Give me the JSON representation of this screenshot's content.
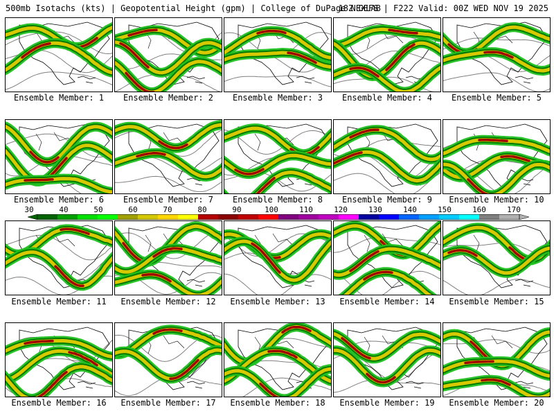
{
  "header": {
    "left": "500mb Isotachs (kts) | Geopotential Height (gpm) | College of DuPage NEXLAB",
    "right": "18Z GEFS | F222 Valid: 00Z WED NOV 19 2025"
  },
  "panels": [
    "Ensemble Member: 1",
    "Ensemble Member: 2",
    "Ensemble Member: 3",
    "Ensemble Member: 4",
    "Ensemble Member: 5",
    "Ensemble Member: 6",
    "Ensemble Member: 7",
    "Ensemble Member: 8",
    "Ensemble Member: 9",
    "Ensemble Member: 10",
    "Ensemble Member: 11",
    "Ensemble Member: 12",
    "Ensemble Member: 13",
    "Ensemble Member: 14",
    "Ensemble Member: 15",
    "Ensemble Member: 16",
    "Ensemble Member: 17",
    "Ensemble Member: 18",
    "Ensemble Member: 19",
    "Ensemble Member: 20"
  ],
  "colorbar": {
    "labels": [
      "30",
      "40",
      "50",
      "60",
      "70",
      "80",
      "90",
      "100",
      "110",
      "120",
      "130",
      "140",
      "150",
      "160",
      "170"
    ],
    "colors": [
      "#006400",
      "#00a000",
      "#00e000",
      "#00ff00",
      "#a0a000",
      "#d4c800",
      "#ffd700",
      "#ffff00",
      "#b40000",
      "#8b0000",
      "#c00000",
      "#ff0000",
      "#800080",
      "#a000a0",
      "#c000c0",
      "#ff00ff",
      "#0000a0",
      "#0000ff",
      "#0066ff",
      "#00a0ff",
      "#00ccff",
      "#00ffff",
      "#808080",
      "#b0b0b0"
    ]
  },
  "colors": {
    "jet_light": "#20c020",
    "jet_dark": "#007a00",
    "jet_yellow": "#d8c800",
    "jet_core": "#a00000",
    "height_contour": "#808080",
    "coastline": "#000000"
  }
}
